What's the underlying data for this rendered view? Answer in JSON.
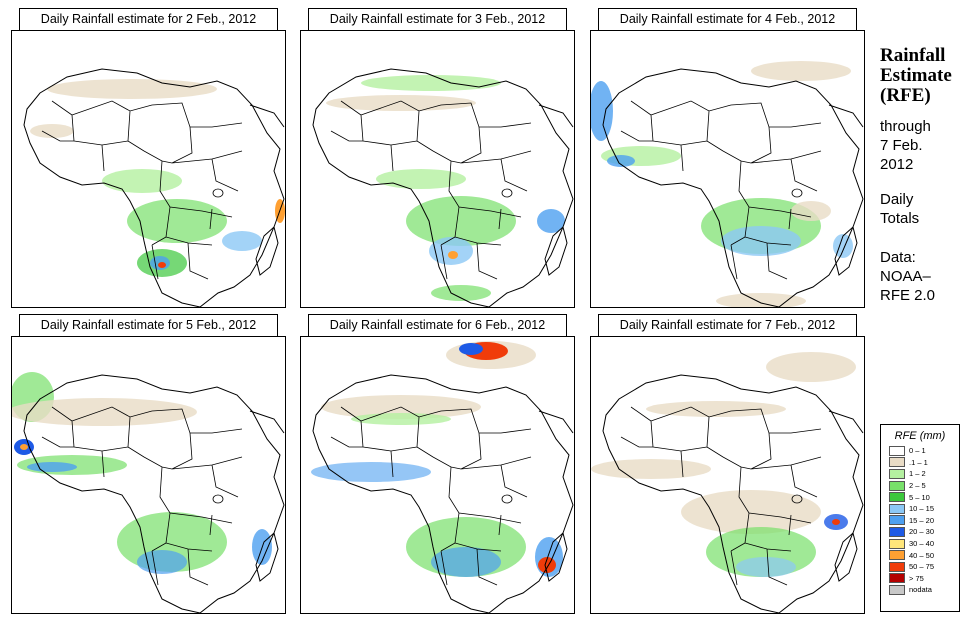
{
  "panels": [
    {
      "title": "Daily Rainfall estimate for  2 Feb., 2012"
    },
    {
      "title": "Daily Rainfall estimate for  3 Feb., 2012"
    },
    {
      "title": "Daily Rainfall estimate for  4 Feb., 2012"
    },
    {
      "title": "Daily Rainfall estimate for  5 Feb., 2012"
    },
    {
      "title": "Daily Rainfall estimate for  6 Feb., 2012"
    },
    {
      "title": "Daily Rainfall estimate for  7 Feb., 2012"
    }
  ],
  "sidebar": {
    "heading": [
      "Rainfall",
      "Estimate",
      "(RFE)"
    ],
    "through": [
      "through",
      "7 Feb.",
      "2012"
    ],
    "totals": [
      "Daily",
      "Totals"
    ],
    "data": [
      "Data:",
      "NOAA–",
      "RFE 2.0"
    ]
  },
  "legend": {
    "title": "RFE (mm)",
    "items": [
      {
        "label": "0 – 1",
        "color": "#ffffff"
      },
      {
        "label": ".1 – 1",
        "color": "#e9dcc6"
      },
      {
        "label": "1 – 2",
        "color": "#b4f0a0"
      },
      {
        "label": "2 – 5",
        "color": "#78e06a"
      },
      {
        "label": "5 – 10",
        "color": "#3cc83c"
      },
      {
        "label": "10 – 15",
        "color": "#8cc8f5"
      },
      {
        "label": "15 – 20",
        "color": "#4ea0f0"
      },
      {
        "label": "20 – 30",
        "color": "#1e5ae6"
      },
      {
        "label": "30 – 40",
        "color": "#ffe67a"
      },
      {
        "label": "40 – 50",
        "color": "#ffa032"
      },
      {
        "label": "50 – 75",
        "color": "#f03c0a"
      },
      {
        "label": "> 75",
        "color": "#b40000"
      },
      {
        "label": "nodata",
        "color": "#c8c8c8"
      }
    ]
  }
}
